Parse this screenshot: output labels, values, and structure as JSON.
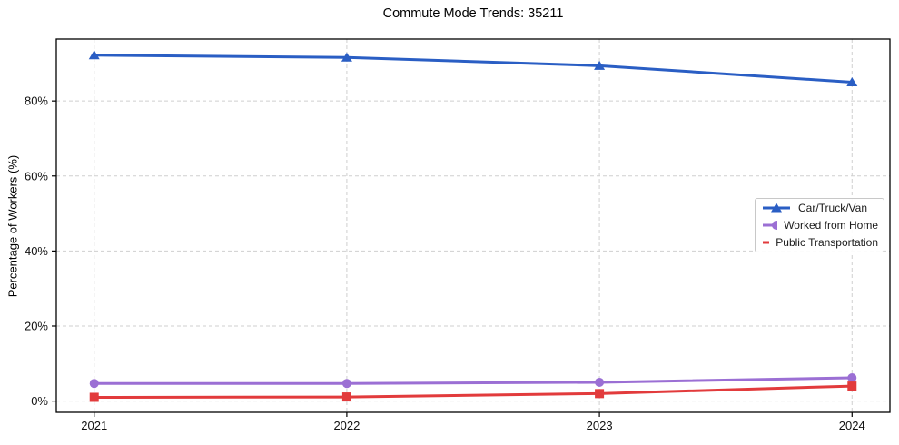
{
  "chart_data": {
    "type": "line",
    "title": "Commute Mode Trends: 35211",
    "xlabel": "",
    "ylabel": "Percentage of Workers (%)",
    "x": [
      2021,
      2022,
      2023,
      2024
    ],
    "x_tick_labels": [
      "2021",
      "2022",
      "2023",
      "2024"
    ],
    "y_ticks": [
      0,
      20,
      40,
      60,
      80
    ],
    "y_tick_labels": [
      "0%",
      "20%",
      "40%",
      "60%",
      "80%"
    ],
    "xlim": [
      2020.85,
      2024.15
    ],
    "ylim": [
      -3.0,
      96.5
    ],
    "grid": true,
    "grid_color": "#cfcfcf",
    "axis_color": "#000000",
    "legend_position": "center-right",
    "series": [
      {
        "name": "Car/Truck/Van",
        "color": "#2a5ec4",
        "marker": "triangle",
        "values": [
          92.2,
          91.6,
          89.4,
          85.0
        ]
      },
      {
        "name": "Worked from Home",
        "color": "#9b6fd4",
        "marker": "circle",
        "values": [
          4.7,
          4.7,
          5.0,
          6.2
        ]
      },
      {
        "name": "Public Transportation",
        "color": "#e23b3c",
        "marker": "square",
        "values": [
          1.0,
          1.1,
          2.0,
          4.0
        ]
      }
    ]
  }
}
